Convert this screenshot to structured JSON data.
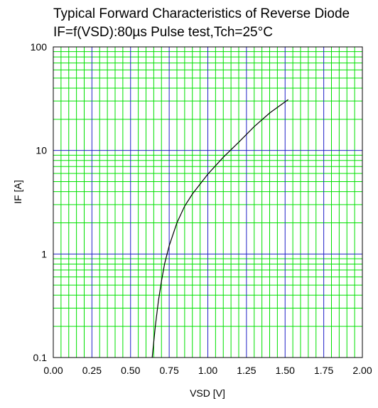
{
  "chart_data": {
    "type": "line",
    "title": "Typical Forward Characteristics of Reverse Diode",
    "subtitle": "IF=f(VSD):80µs Pulse test,Tch=25°C",
    "xlabel": "VSD [V]",
    "ylabel": "IF [A]",
    "xlim": [
      0,
      2.0
    ],
    "ylim": [
      0.1,
      100
    ],
    "yscale": "log",
    "x_ticks": [
      "0.00",
      "0.25",
      "0.50",
      "0.75",
      "1.00",
      "1.25",
      "1.50",
      "1.75",
      "2.00"
    ],
    "y_ticks": [
      "0.1",
      "1",
      "10",
      "100"
    ],
    "grid": true,
    "series": [
      {
        "x": [
          0.64,
          0.66,
          0.68,
          0.7,
          0.72,
          0.75,
          0.8,
          0.85,
          0.9,
          1.0,
          1.1,
          1.2,
          1.3,
          1.4,
          1.52
        ],
        "y": [
          0.1,
          0.2,
          0.35,
          0.55,
          0.8,
          1.2,
          2.0,
          2.9,
          3.8,
          5.9,
          8.6,
          12,
          17,
          23,
          31
        ]
      }
    ],
    "colors": {
      "major_grid": "#2020c8",
      "minor_grid": "#00e000",
      "curve": "#000000"
    }
  }
}
